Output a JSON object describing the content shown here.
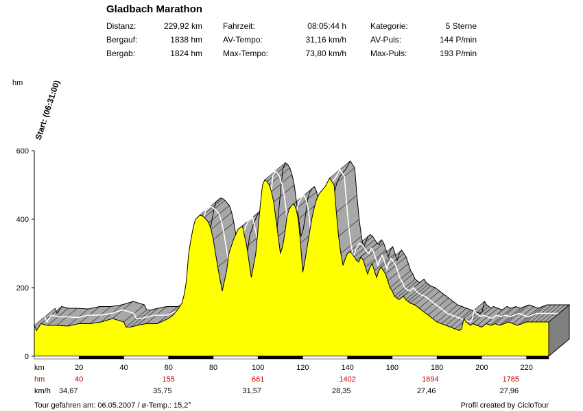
{
  "header": {
    "title": "Gladbach Marathon",
    "stats": [
      {
        "label": "Distanz:",
        "value": "229,92 km"
      },
      {
        "label": "Bergauf:",
        "value": "1838 hm"
      },
      {
        "label": "Bergab:",
        "value": "1824 hm"
      },
      {
        "label": "Fahrzeit:",
        "value": "08:05:44 h"
      },
      {
        "label": "AV-Tempo:",
        "value": "31,16 km/h"
      },
      {
        "label": "Max-Tempo:",
        "value": "73,80 km/h"
      },
      {
        "label": "Kategorie:",
        "value": "5 Sterne"
      },
      {
        "label": "AV-Puls:",
        "value": "144 P/min"
      },
      {
        "label": "Max-Puls:",
        "value": "193 P/min"
      }
    ]
  },
  "chart_data": {
    "type": "area",
    "ylabel": "hm",
    "start_label": "Start: (06:31:00)",
    "y_ticks": [
      0,
      200,
      400,
      600
    ],
    "ylim": [
      0,
      600
    ],
    "xlim": [
      0,
      229.92
    ],
    "x_ticks": [
      20,
      40,
      60,
      80,
      100,
      120,
      140,
      160,
      180,
      200,
      220
    ],
    "x_unit_label": "km",
    "hm_row_label": "hm",
    "kmh_row_label": "km/h",
    "hm_row": [
      {
        "x": 20,
        "value": "40"
      },
      {
        "x": 60,
        "value": "155"
      },
      {
        "x": 100,
        "value": "661"
      },
      {
        "x": 140,
        "value": "1402"
      },
      {
        "x": 177,
        "value": "1694"
      },
      {
        "x": 213,
        "value": "1785"
      }
    ],
    "kmh_row": [
      {
        "x": 3,
        "value": "34,67"
      },
      {
        "x": 45,
        "value": "35,75"
      },
      {
        "x": 85,
        "value": "31,57"
      },
      {
        "x": 125,
        "value": "28,35"
      },
      {
        "x": 163,
        "value": "27,46"
      },
      {
        "x": 200,
        "value": "27,96"
      }
    ],
    "x": [
      0,
      1,
      3,
      6,
      10,
      15,
      20,
      25,
      30,
      35,
      40,
      41,
      43,
      46,
      50,
      55,
      60,
      62,
      64,
      66,
      67,
      68,
      69,
      70,
      71,
      72,
      73,
      74,
      75,
      76,
      78,
      79,
      80,
      82,
      84,
      86,
      87,
      88,
      89,
      90,
      91,
      93,
      95,
      97,
      99,
      100,
      101,
      102,
      103,
      104,
      105,
      106,
      107,
      108,
      109,
      110,
      111,
      112,
      113,
      114,
      115,
      116,
      117,
      118,
      119,
      120,
      121,
      122,
      123,
      124,
      125,
      126,
      127,
      128,
      130,
      132,
      134,
      135,
      136,
      137,
      138,
      139,
      140,
      141,
      142,
      143,
      144,
      145,
      146,
      147,
      148,
      149,
      150,
      151,
      152,
      153,
      154,
      155,
      156,
      157,
      158,
      159,
      160,
      161,
      162,
      163,
      164,
      165,
      166,
      167,
      168,
      170,
      172,
      174,
      176,
      178,
      180,
      182,
      184,
      186,
      188,
      190,
      191,
      192,
      193,
      194,
      195,
      196,
      198,
      200,
      202,
      204,
      206,
      208,
      210,
      212,
      214,
      216,
      218,
      220,
      222,
      224,
      226,
      228,
      229.92
    ],
    "y": [
      90,
      75,
      95,
      90,
      90,
      88,
      95,
      95,
      100,
      110,
      100,
      85,
      85,
      90,
      95,
      95,
      110,
      120,
      135,
      155,
      180,
      220,
      300,
      340,
      375,
      400,
      405,
      412,
      410,
      405,
      390,
      370,
      340,
      260,
      190,
      250,
      300,
      320,
      340,
      355,
      370,
      380,
      320,
      230,
      300,
      370,
      440,
      500,
      515,
      510,
      500,
      480,
      450,
      400,
      350,
      300,
      320,
      360,
      410,
      430,
      440,
      445,
      430,
      400,
      330,
      245,
      280,
      320,
      360,
      400,
      430,
      455,
      470,
      480,
      495,
      520,
      500,
      420,
      350,
      300,
      265,
      285,
      300,
      305,
      300,
      290,
      280,
      275,
      290,
      280,
      260,
      240,
      260,
      270,
      250,
      230,
      250,
      260,
      250,
      240,
      220,
      200,
      190,
      175,
      170,
      165,
      170,
      175,
      165,
      160,
      155,
      150,
      140,
      130,
      120,
      110,
      100,
      95,
      90,
      85,
      80,
      75,
      80,
      110,
      100,
      95,
      90,
      95,
      90,
      85,
      95,
      90,
      95,
      90,
      95,
      100,
      95,
      90,
      95,
      100,
      100,
      100,
      100,
      100,
      100
    ]
  },
  "footer": {
    "left": "Tour gefahren am: 06.05.2007  /  ø-Temp.: 15,2°",
    "right": "Profil created by CicloTour"
  },
  "colors": {
    "fill": "#ffff00",
    "shadow": "#a8a8a8",
    "red_labels": "#cc0000"
  }
}
